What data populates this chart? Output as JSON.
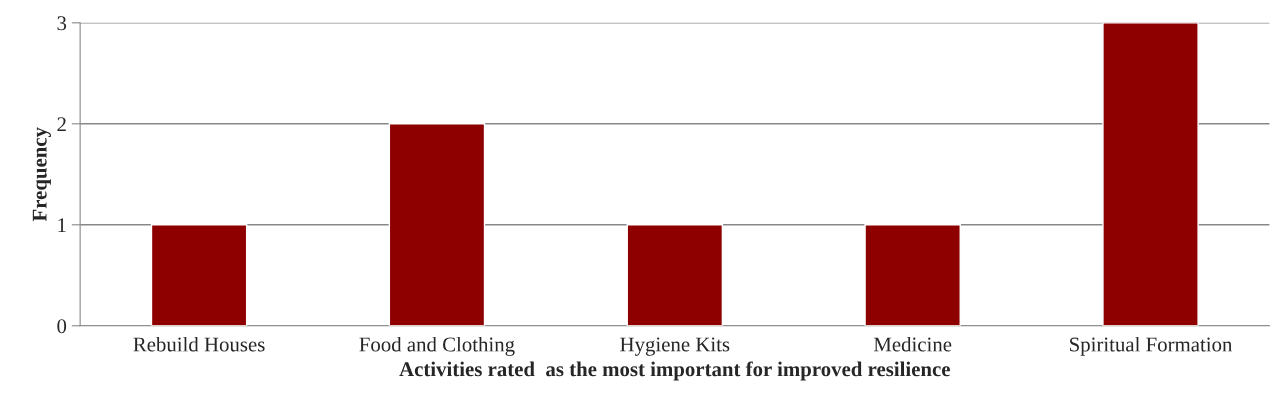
{
  "chart_data": {
    "type": "bar",
    "categories": [
      "Rebuild Houses",
      "Food and Clothing",
      "Hygiene Kits",
      "Medicine",
      "Spiritual Formation"
    ],
    "values": [
      1,
      2,
      1,
      1,
      3
    ],
    "color": "#8e0000",
    "xlabel": "Activities rated  as the most important for improved resilience",
    "ylabel": "Frequency",
    "ylim": [
      0,
      3
    ],
    "yticks": [
      0,
      1,
      2,
      3
    ],
    "grid": "y",
    "legend": false
  }
}
